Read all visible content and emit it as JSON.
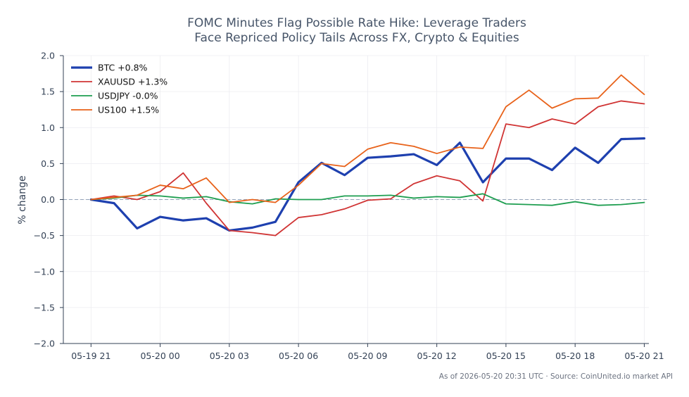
{
  "chart_data": {
    "type": "line",
    "title_lines": [
      "FOMC Minutes Flag Possible Rate Hike: Leverage Traders",
      "Face Repriced Policy Tails Across FX, Crypto & Equities"
    ],
    "xlabel": "",
    "ylabel": "% change",
    "ylim": [
      -2.0,
      2.0
    ],
    "yticks": [
      -2.0,
      -1.5,
      -1.0,
      -0.5,
      0.0,
      0.5,
      1.0,
      1.5,
      2.0
    ],
    "ytick_labels": [
      "−2.0",
      "−1.5",
      "−1.0",
      "−0.5",
      "0.0",
      "0.5",
      "1.0",
      "1.5",
      "2.0"
    ],
    "xlim": [
      "2026-05-19 19:48",
      "2026-05-20 21:12"
    ],
    "x": [
      "2026-05-19 21:00",
      "2026-05-19 22:00",
      "2026-05-19 23:00",
      "2026-05-20 00:00",
      "2026-05-20 01:00",
      "2026-05-20 02:00",
      "2026-05-20 03:00",
      "2026-05-20 04:00",
      "2026-05-20 05:00",
      "2026-05-20 06:00",
      "2026-05-20 07:00",
      "2026-05-20 08:00",
      "2026-05-20 09:00",
      "2026-05-20 10:00",
      "2026-05-20 11:00",
      "2026-05-20 12:00",
      "2026-05-20 13:00",
      "2026-05-20 14:00",
      "2026-05-20 15:00",
      "2026-05-20 16:00",
      "2026-05-20 17:00",
      "2026-05-20 18:00",
      "2026-05-20 19:00",
      "2026-05-20 20:00",
      "2026-05-20 21:00"
    ],
    "xticks": [
      "2026-05-19 21:00",
      "2026-05-20 00:00",
      "2026-05-20 03:00",
      "2026-05-20 06:00",
      "2026-05-20 09:00",
      "2026-05-20 12:00",
      "2026-05-20 15:00",
      "2026-05-20 18:00",
      "2026-05-20 21:00"
    ],
    "xtick_labels": [
      "05-19 21",
      "05-20 00",
      "05-20 03",
      "05-20 06",
      "05-20 09",
      "05-20 12",
      "05-20 15",
      "05-20 18",
      "05-20 21"
    ],
    "series": [
      {
        "name": "BTC +0.8%",
        "color": "#1e40af",
        "width": 3.2,
        "values": [
          0.0,
          -0.05,
          -0.4,
          -0.24,
          -0.29,
          -0.26,
          -0.43,
          -0.39,
          -0.31,
          0.24,
          0.51,
          0.34,
          0.58,
          0.6,
          0.63,
          0.48,
          0.79,
          0.24,
          0.57,
          0.57,
          0.41,
          0.72,
          0.51,
          0.84,
          0.85
        ]
      },
      {
        "name": "XAUUSD +1.3%",
        "color": "#d03434",
        "width": 1.8,
        "values": [
          0.0,
          0.05,
          0.0,
          0.11,
          0.37,
          -0.05,
          -0.43,
          -0.46,
          -0.5,
          -0.25,
          -0.21,
          -0.13,
          -0.01,
          0.01,
          0.22,
          0.33,
          0.26,
          -0.02,
          1.05,
          1.0,
          1.12,
          1.05,
          1.29,
          1.37,
          1.33
        ]
      },
      {
        "name": "USDJPY -0.0%",
        "color": "#1e9e50",
        "width": 1.8,
        "values": [
          0.0,
          0.02,
          0.06,
          0.05,
          0.02,
          0.04,
          -0.03,
          -0.06,
          0.01,
          0.0,
          0.0,
          0.05,
          0.05,
          0.06,
          0.02,
          0.04,
          0.03,
          0.08,
          -0.06,
          -0.07,
          -0.08,
          -0.03,
          -0.08,
          -0.07,
          -0.04
        ]
      },
      {
        "name": "US100 +1.5%",
        "color": "#e8621a",
        "width": 1.8,
        "values": [
          0.0,
          0.03,
          0.06,
          0.2,
          0.15,
          0.3,
          -0.04,
          0.0,
          -0.04,
          0.2,
          0.5,
          0.46,
          0.7,
          0.79,
          0.74,
          0.64,
          0.73,
          0.71,
          1.29,
          1.52,
          1.27,
          1.4,
          1.41,
          1.73,
          1.46
        ]
      }
    ],
    "legend_position": "upper-left",
    "grid": true,
    "zero_line": {
      "value": 0.0,
      "style": "dashed",
      "color": "#94a3b8"
    },
    "footnote": "As of 2026-05-20 20:31 UTC · Source: CoinUnited.io market API"
  }
}
